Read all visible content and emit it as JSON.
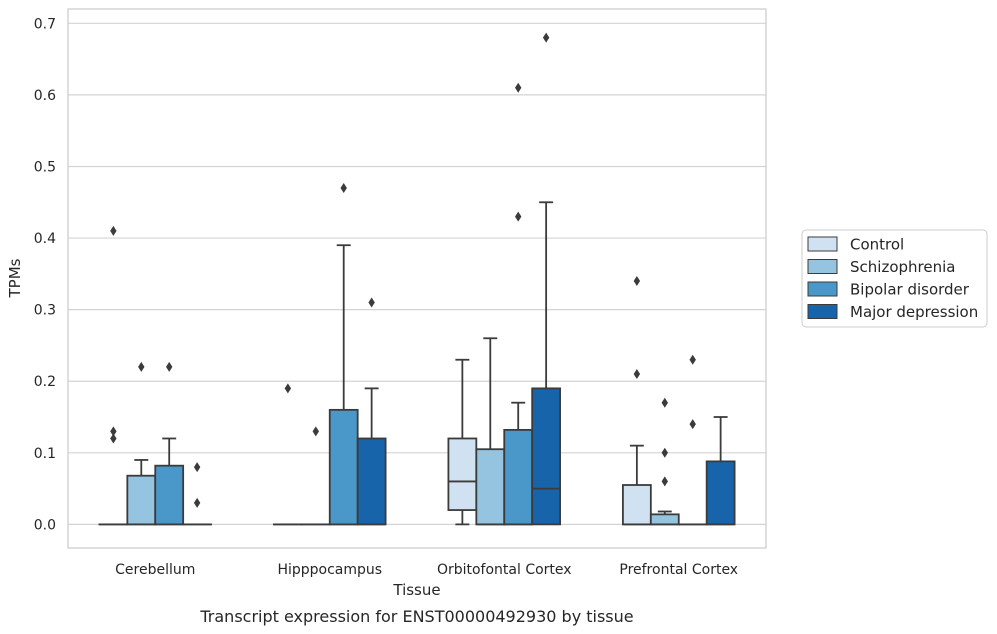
{
  "chart_data": {
    "type": "box",
    "title": "",
    "caption": "Transcript expression for ENST00000492930 by tissue",
    "xlabel": "Tissue",
    "ylabel": "TPMs",
    "ylim": [
      -0.033,
      0.72
    ],
    "yticks": [
      "0.0",
      "0.1",
      "0.2",
      "0.3",
      "0.4",
      "0.5",
      "0.6",
      "0.7"
    ],
    "grid": "horizontal",
    "legend_position": "right",
    "categories": [
      "Cerebellum",
      "Hipppocampus",
      "Orbitofontal Cortex",
      "Prefrontal Cortex"
    ],
    "series": [
      {
        "name": "Control",
        "color": "#d0e1f2",
        "boxes": [
          {
            "q1": 0,
            "median": 0,
            "q3": 0,
            "whislo": 0,
            "whishi": 0,
            "fliers": [
              0.41,
              0.13,
              0.12
            ]
          },
          {
            "q1": 0,
            "median": 0,
            "q3": 0,
            "whislo": 0,
            "whishi": 0,
            "fliers": [
              0.19
            ]
          },
          {
            "q1": 0.02,
            "median": 0.06,
            "q3": 0.12,
            "whislo": 0,
            "whishi": 0.23,
            "fliers": []
          },
          {
            "q1": 0,
            "median": 0,
            "q3": 0.055,
            "whislo": 0,
            "whishi": 0.11,
            "fliers": [
              0.34,
              0.21
            ]
          }
        ]
      },
      {
        "name": "Schizophrenia",
        "color": "#94c4df",
        "boxes": [
          {
            "q1": 0,
            "median": 0,
            "q3": 0.068,
            "whislo": 0,
            "whishi": 0.09,
            "fliers": [
              0.22
            ]
          },
          {
            "q1": 0,
            "median": 0,
            "q3": 0,
            "whislo": 0,
            "whishi": 0,
            "fliers": [
              0.13
            ]
          },
          {
            "q1": 0,
            "median": 0,
            "q3": 0.105,
            "whislo": 0,
            "whishi": 0.26,
            "fliers": []
          },
          {
            "q1": 0,
            "median": 0,
            "q3": 0.014,
            "whislo": 0,
            "whishi": 0.018,
            "fliers": [
              0.17,
              0.1,
              0.06
            ]
          }
        ]
      },
      {
        "name": "Bipolar disorder",
        "color": "#4a98c9",
        "boxes": [
          {
            "q1": 0,
            "median": 0,
            "q3": 0.082,
            "whislo": 0,
            "whishi": 0.12,
            "fliers": [
              0.22
            ]
          },
          {
            "q1": 0,
            "median": 0,
            "q3": 0.16,
            "whislo": 0,
            "whishi": 0.39,
            "fliers": [
              0.47
            ]
          },
          {
            "q1": 0,
            "median": 0,
            "q3": 0.132,
            "whislo": 0,
            "whishi": 0.17,
            "fliers": [
              0.43,
              0.61
            ]
          },
          {
            "q1": 0,
            "median": 0,
            "q3": 0,
            "whislo": 0,
            "whishi": 0,
            "fliers": [
              0.23,
              0.14
            ]
          }
        ]
      },
      {
        "name": "Major depression",
        "color": "#1764ab",
        "boxes": [
          {
            "q1": 0,
            "median": 0,
            "q3": 0,
            "whislo": 0,
            "whishi": 0,
            "fliers": [
              0.08,
              0.03
            ]
          },
          {
            "q1": 0,
            "median": 0,
            "q3": 0.12,
            "whislo": 0,
            "whishi": 0.19,
            "fliers": [
              0.31
            ]
          },
          {
            "q1": 0,
            "median": 0.05,
            "q3": 0.19,
            "whislo": 0,
            "whishi": 0.45,
            "fliers": [
              0.68
            ]
          },
          {
            "q1": 0,
            "median": 0,
            "q3": 0.088,
            "whislo": 0,
            "whishi": 0.15,
            "fliers": []
          }
        ]
      }
    ]
  }
}
